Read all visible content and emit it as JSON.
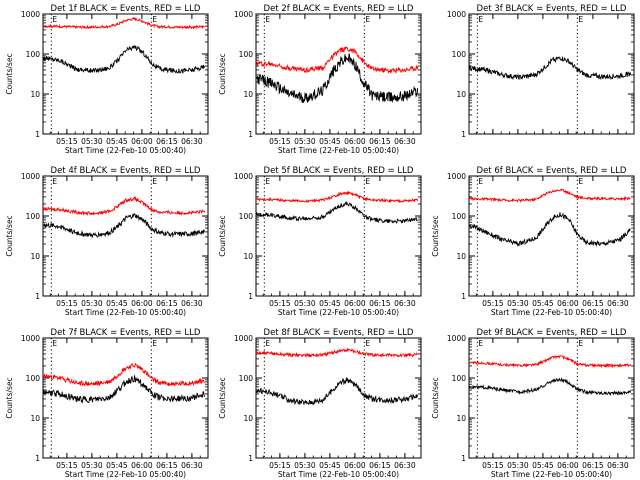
{
  "figure": {
    "axis_color": "#000000",
    "series_colors": {
      "Events": "#000000",
      "LLD": "#ff0000"
    },
    "background": "#ffffff"
  },
  "chart_data": [
    {
      "type": "line",
      "title": "Det 1f BLACK = Events, RED = LLD",
      "xlabel": "Start Time (22-Feb-10 05:00:40)",
      "ylabel": "Counts/sec",
      "x_ticks": [
        "05:15",
        "05:30",
        "05:45",
        "06:00",
        "06:15",
        "06:30"
      ],
      "y_ticks": [
        "1",
        "10",
        "100",
        "1000"
      ],
      "ylim": [
        1,
        1000
      ],
      "yscale": "log",
      "marker_label": "E",
      "markers": [
        5,
        65
      ],
      "x_minutes": [
        0,
        10,
        20,
        30,
        40,
        45,
        50,
        55,
        60,
        65,
        70,
        80,
        90,
        97
      ],
      "series": [
        {
          "color": "#000000",
          "noise": 0.06,
          "values": [
            80,
            70,
            42,
            38,
            45,
            70,
            125,
            150,
            110,
            60,
            42,
            38,
            40,
            48
          ]
        },
        {
          "color": "#ff0000",
          "noise": 0.03,
          "values": [
            500,
            490,
            470,
            470,
            490,
            560,
            700,
            760,
            660,
            520,
            480,
            470,
            470,
            480
          ]
        }
      ]
    },
    {
      "type": "line",
      "title": "Det 2f BLACK = Events, RED = LLD",
      "xlabel": "Start Time (22-Feb-10 05:00:40)",
      "ylabel": "Counts/sec",
      "x_ticks": [
        "05:15",
        "05:30",
        "05:45",
        "06:00",
        "06:15",
        "06:30"
      ],
      "y_ticks": [
        "1",
        "10",
        "100",
        "1000"
      ],
      "ylim": [
        1,
        1000
      ],
      "yscale": "log",
      "marker_label": "E",
      "markers": [
        5,
        65
      ],
      "x_minutes": [
        0,
        10,
        20,
        30,
        40,
        45,
        50,
        55,
        60,
        65,
        70,
        80,
        90,
        97
      ],
      "series": [
        {
          "color": "#000000",
          "noise": 0.14,
          "values": [
            25,
            18,
            10,
            8,
            12,
            30,
            60,
            80,
            50,
            18,
            9,
            8,
            9,
            12
          ]
        },
        {
          "color": "#ff0000",
          "noise": 0.06,
          "values": [
            60,
            55,
            45,
            40,
            45,
            80,
            120,
            140,
            110,
            60,
            42,
            38,
            40,
            45
          ]
        }
      ]
    },
    {
      "type": "line",
      "title": "Det 3f BLACK = Events, RED = LLD",
      "xlabel": "",
      "ylabel": "",
      "x_ticks": [],
      "y_ticks": [
        "1",
        "10",
        "100",
        "1000"
      ],
      "ylim": [
        1,
        1000
      ],
      "yscale": "log",
      "marker_label": "E",
      "markers": [
        5,
        65
      ],
      "x_minutes": [
        0,
        10,
        20,
        30,
        40,
        45,
        50,
        55,
        60,
        65,
        70,
        80,
        90,
        97
      ],
      "series": [
        {
          "color": "#000000",
          "noise": 0.06,
          "values": [
            45,
            40,
            30,
            26,
            30,
            45,
            70,
            80,
            65,
            40,
            30,
            27,
            28,
            32
          ]
        }
      ]
    },
    {
      "type": "line",
      "title": "Det 4f BLACK = Events, RED = LLD",
      "xlabel": "Start Time (22-Feb-10 05:00:40)",
      "ylabel": "Counts/sec",
      "x_ticks": [
        "05:15",
        "05:30",
        "05:45",
        "06:00",
        "06:15",
        "06:30"
      ],
      "y_ticks": [
        "1",
        "10",
        "100",
        "1000"
      ],
      "ylim": [
        1,
        1000
      ],
      "yscale": "log",
      "marker_label": "E",
      "markers": [
        5,
        65
      ],
      "x_minutes": [
        0,
        10,
        20,
        30,
        40,
        45,
        50,
        55,
        60,
        65,
        70,
        80,
        90,
        97
      ],
      "series": [
        {
          "color": "#000000",
          "noise": 0.06,
          "values": [
            60,
            55,
            38,
            33,
            38,
            55,
            90,
            105,
            80,
            48,
            38,
            35,
            36,
            42
          ]
        },
        {
          "color": "#ff0000",
          "noise": 0.04,
          "values": [
            150,
            145,
            125,
            115,
            130,
            180,
            250,
            270,
            210,
            145,
            125,
            120,
            120,
            130
          ]
        }
      ]
    },
    {
      "type": "line",
      "title": "Det 5f BLACK = Events, RED = LLD",
      "xlabel": "Start Time (22-Feb-10 05:00:40)",
      "ylabel": "Counts/sec",
      "x_ticks": [
        "05:15",
        "05:30",
        "05:45",
        "06:00",
        "06:15",
        "06:30"
      ],
      "y_ticks": [
        "1",
        "10",
        "100",
        "1000"
      ],
      "ylim": [
        1,
        1000
      ],
      "yscale": "log",
      "marker_label": "E",
      "markers": [
        5,
        65
      ],
      "x_minutes": [
        0,
        10,
        20,
        30,
        40,
        45,
        50,
        55,
        60,
        65,
        70,
        80,
        90,
        97
      ],
      "series": [
        {
          "color": "#000000",
          "noise": 0.05,
          "values": [
            110,
            105,
            90,
            85,
            95,
            130,
            180,
            200,
            160,
            100,
            80,
            75,
            75,
            85
          ]
        },
        {
          "color": "#ff0000",
          "noise": 0.03,
          "values": [
            260,
            255,
            240,
            235,
            250,
            290,
            350,
            380,
            330,
            270,
            250,
            240,
            240,
            250
          ]
        }
      ]
    },
    {
      "type": "line",
      "title": "Det 6f BLACK = Events, RED = LLD",
      "xlabel": "Start Time (22-Feb-10 05:00:40)",
      "ylabel": "Counts/sec",
      "x_ticks": [
        "05:15",
        "05:30",
        "05:45",
        "06:00",
        "06:15",
        "06:30"
      ],
      "y_ticks": [
        "1",
        "10",
        "100",
        "1000"
      ],
      "ylim": [
        1,
        1000
      ],
      "yscale": "log",
      "marker_label": "E",
      "markers": [
        5,
        65
      ],
      "x_minutes": [
        0,
        10,
        20,
        30,
        40,
        45,
        50,
        55,
        60,
        65,
        70,
        80,
        90,
        97
      ],
      "series": [
        {
          "color": "#000000",
          "noise": 0.06,
          "values": [
            60,
            40,
            25,
            20,
            28,
            50,
            90,
            110,
            80,
            35,
            22,
            20,
            25,
            45
          ]
        },
        {
          "color": "#ff0000",
          "noise": 0.03,
          "values": [
            270,
            265,
            250,
            245,
            260,
            340,
            420,
            450,
            380,
            300,
            280,
            270,
            270,
            275
          ]
        }
      ]
    },
    {
      "type": "line",
      "title": "Det 7f BLACK = Events, RED = LLD",
      "xlabel": "Start Time (22-Feb-10 05:00:40)",
      "ylabel": "Counts/sec",
      "x_ticks": [
        "05:15",
        "05:30",
        "05:45",
        "06:00",
        "06:15",
        "06:30"
      ],
      "y_ticks": [
        "1",
        "10",
        "100",
        "1000"
      ],
      "ylim": [
        1,
        1000
      ],
      "yscale": "log",
      "marker_label": "E",
      "markers": [
        5,
        65
      ],
      "x_minutes": [
        0,
        10,
        20,
        30,
        40,
        45,
        50,
        55,
        60,
        65,
        70,
        80,
        90,
        97
      ],
      "series": [
        {
          "color": "#000000",
          "noise": 0.08,
          "values": [
            45,
            40,
            30,
            28,
            32,
            50,
            80,
            95,
            70,
            40,
            32,
            30,
            32,
            40
          ]
        },
        {
          "color": "#ff0000",
          "noise": 0.06,
          "values": [
            110,
            100,
            75,
            70,
            80,
            120,
            180,
            210,
            160,
            95,
            75,
            70,
            75,
            85
          ]
        }
      ]
    },
    {
      "type": "line",
      "title": "Det 8f BLACK = Events, RED = LLD",
      "xlabel": "Start Time (22-Feb-10 05:00:40)",
      "ylabel": "Counts/sec",
      "x_ticks": [
        "05:15",
        "05:30",
        "05:45",
        "06:00",
        "06:15",
        "06:30"
      ],
      "y_ticks": [
        "1",
        "10",
        "100",
        "1000"
      ],
      "ylim": [
        1,
        1000
      ],
      "yscale": "log",
      "marker_label": "E",
      "markers": [
        5,
        65
      ],
      "x_minutes": [
        0,
        10,
        20,
        30,
        40,
        45,
        50,
        55,
        60,
        65,
        70,
        80,
        90,
        97
      ],
      "series": [
        {
          "color": "#000000",
          "noise": 0.07,
          "values": [
            50,
            42,
            28,
            24,
            28,
            45,
            75,
            90,
            65,
            38,
            30,
            28,
            30,
            35
          ]
        },
        {
          "color": "#ff0000",
          "noise": 0.04,
          "values": [
            420,
            410,
            380,
            370,
            380,
            420,
            480,
            500,
            460,
            400,
            380,
            370,
            370,
            380
          ]
        }
      ]
    },
    {
      "type": "line",
      "title": "Det 9f BLACK = Events, RED = LLD",
      "xlabel": "Start Time (22-Feb-10 05:00:40)",
      "ylabel": "Counts/sec",
      "x_ticks": [
        "05:15",
        "05:30",
        "05:45",
        "06:00",
        "06:15",
        "06:30"
      ],
      "y_ticks": [
        "1",
        "10",
        "100",
        "1000"
      ],
      "ylim": [
        1,
        1000
      ],
      "yscale": "log",
      "marker_label": "E",
      "markers": [
        5,
        65
      ],
      "x_minutes": [
        0,
        10,
        20,
        30,
        40,
        45,
        50,
        55,
        60,
        65,
        70,
        80,
        90,
        97
      ],
      "series": [
        {
          "color": "#000000",
          "noise": 0.04,
          "values": [
            60,
            58,
            50,
            45,
            50,
            65,
            85,
            90,
            75,
            52,
            45,
            42,
            42,
            45
          ]
        },
        {
          "color": "#ff0000",
          "noise": 0.03,
          "values": [
            240,
            235,
            215,
            205,
            215,
            260,
            330,
            350,
            290,
            225,
            210,
            205,
            205,
            210
          ]
        }
      ]
    }
  ]
}
